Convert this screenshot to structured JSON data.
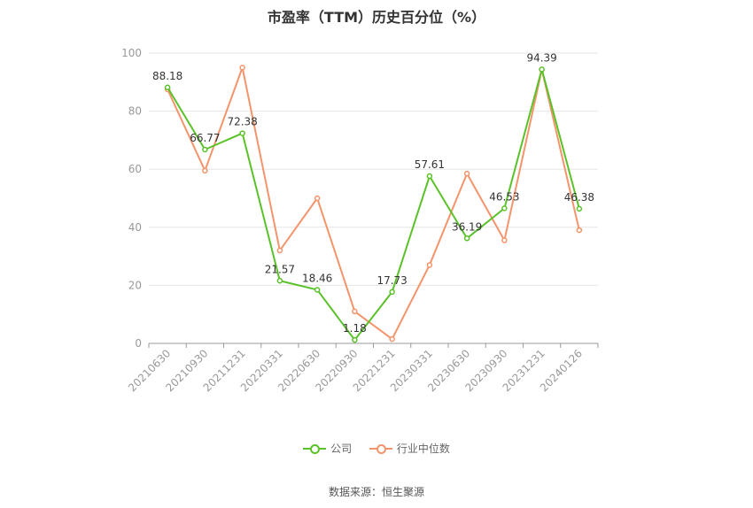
{
  "title": "市盈率（TTM）历史百分位（%）",
  "source": "数据来源：恒生聚源",
  "colors": {
    "company": "#5ac229",
    "industry": "#f4946b",
    "grid": "#e6e6e6",
    "axis": "#999999",
    "tick_text": "#999999",
    "label_text": "#333333"
  },
  "chart_data": {
    "type": "line",
    "title": "市盈率（TTM）历史百分位（%）",
    "xlabel": "",
    "ylabel": "",
    "ylim": [
      0,
      100
    ],
    "yticks": [
      0,
      20,
      40,
      60,
      80,
      100
    ],
    "grid": true,
    "legend_position": "bottom",
    "categories": [
      "20210630",
      "20210930",
      "20211231",
      "20220331",
      "20220630",
      "20220930",
      "20221231",
      "20230331",
      "20230630",
      "20230930",
      "20231231",
      "20240126"
    ],
    "series": [
      {
        "name": "公司",
        "values": [
          88.18,
          66.77,
          72.38,
          21.57,
          18.46,
          1.18,
          17.73,
          57.61,
          36.19,
          46.53,
          94.39,
          46.38
        ],
        "labeled": true
      },
      {
        "name": "行业中位数",
        "values": [
          87.5,
          59.5,
          95.0,
          32.0,
          50.0,
          11.0,
          1.5,
          27.0,
          58.5,
          35.5,
          94.3,
          39.0
        ],
        "labeled": false
      }
    ]
  }
}
